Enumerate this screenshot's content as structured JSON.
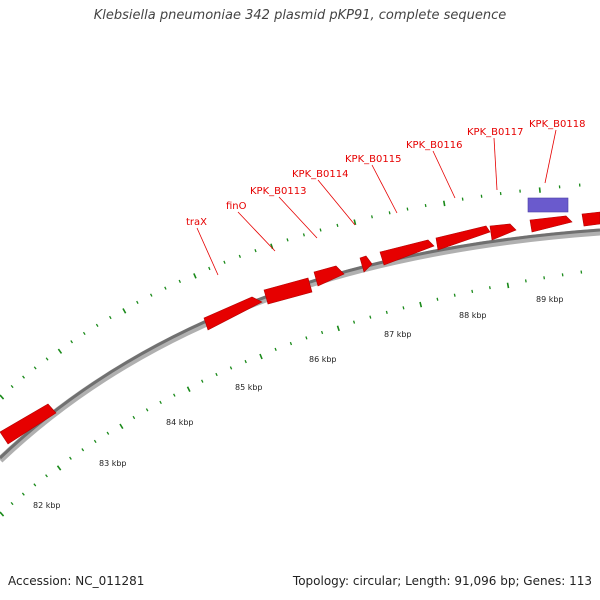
{
  "title": "Klebsiella pneumoniae 342 plasmid pKP91, complete sequence",
  "footer": {
    "accession": "Accession: NC_011281",
    "summary": "Topology: circular; Length: 91,096 bp; Genes: 113"
  },
  "colors": {
    "gene": "#e60000",
    "gene_alt": "#6a5acd",
    "tick": "#1a8a1a",
    "backbone": "#808080",
    "label": "#e60000"
  },
  "kbp_labels": [
    "82 kbp",
    "83 kbp",
    "84 kbp",
    "85 kbp",
    "86 kbp",
    "87 kbp",
    "88 kbp",
    "89 kbp"
  ],
  "gene_labels": [
    "traX",
    "finO",
    "KPK_B0113",
    "KPK_B0114",
    "KPK_B0115",
    "KPK_B0116",
    "KPK_B0117",
    "KPK_B0118"
  ]
}
